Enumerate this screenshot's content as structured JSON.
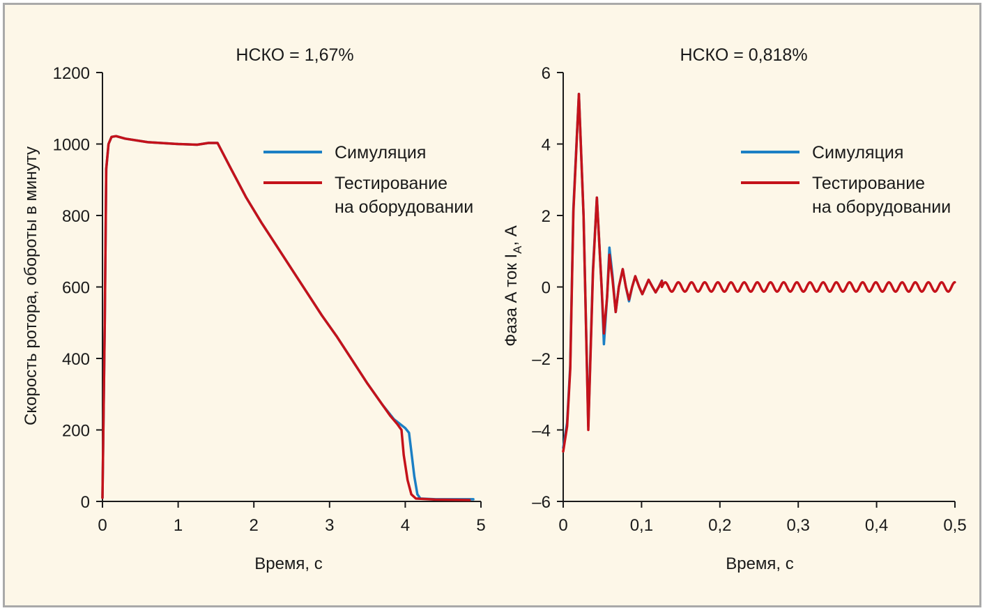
{
  "colors": {
    "background": "#fdf7e8",
    "frame": "#a9a9a9",
    "simulation": "#1b7fc4",
    "hardware": "#c4121a"
  },
  "chart_data": [
    {
      "type": "line",
      "title": "НСКО = 1,67%",
      "xlabel": "Время, с",
      "ylabel": "Скорость ротора, обороты в минуту",
      "xlim": [
        0,
        5
      ],
      "ylim": [
        0,
        1200
      ],
      "xticks": [
        {
          "v": 0,
          "label": "0"
        },
        {
          "v": 1,
          "label": "1"
        },
        {
          "v": 2,
          "label": "2"
        },
        {
          "v": 3,
          "label": "3"
        },
        {
          "v": 4,
          "label": "4"
        },
        {
          "v": 5,
          "label": "5"
        }
      ],
      "yticks": [
        {
          "v": 0,
          "label": "0"
        },
        {
          "v": 200,
          "label": "200"
        },
        {
          "v": 400,
          "label": "400"
        },
        {
          "v": 600,
          "label": "600"
        },
        {
          "v": 800,
          "label": "800"
        },
        {
          "v": 1000,
          "label": "1000"
        },
        {
          "v": 1200,
          "label": "1200"
        }
      ],
      "legend": [
        "Симуляция",
        "Тестирование",
        "на оборудовании"
      ],
      "series": [
        {
          "name": "Симуляция",
          "color": "#1b7fc4",
          "points": [
            [
              0,
              10
            ],
            [
              0.03,
              500
            ],
            [
              0.05,
              930
            ],
            [
              0.08,
              1000
            ],
            [
              0.12,
              1020
            ],
            [
              0.18,
              1022
            ],
            [
              0.3,
              1015
            ],
            [
              0.6,
              1005
            ],
            [
              1.0,
              1000
            ],
            [
              1.25,
              998
            ],
            [
              1.4,
              1003
            ],
            [
              1.52,
              1003
            ],
            [
              1.7,
              930
            ],
            [
              1.9,
              850
            ],
            [
              2.1,
              780
            ],
            [
              2.3,
              715
            ],
            [
              2.5,
              650
            ],
            [
              2.7,
              585
            ],
            [
              2.9,
              520
            ],
            [
              3.1,
              460
            ],
            [
              3.3,
              395
            ],
            [
              3.5,
              330
            ],
            [
              3.7,
              270
            ],
            [
              3.85,
              230
            ],
            [
              4.0,
              205
            ],
            [
              4.05,
              192
            ],
            [
              4.08,
              140
            ],
            [
              4.12,
              70
            ],
            [
              4.16,
              20
            ],
            [
              4.2,
              8
            ],
            [
              4.4,
              6
            ],
            [
              4.9,
              6
            ]
          ]
        },
        {
          "name": "Тестирование на оборудовании",
          "color": "#c4121a",
          "points": [
            [
              0,
              10
            ],
            [
              0.03,
              500
            ],
            [
              0.05,
              930
            ],
            [
              0.08,
              1000
            ],
            [
              0.12,
              1020
            ],
            [
              0.18,
              1022
            ],
            [
              0.3,
              1015
            ],
            [
              0.6,
              1005
            ],
            [
              1.0,
              1000
            ],
            [
              1.25,
              998
            ],
            [
              1.4,
              1003
            ],
            [
              1.52,
              1003
            ],
            [
              1.7,
              930
            ],
            [
              1.9,
              850
            ],
            [
              2.1,
              780
            ],
            [
              2.3,
              715
            ],
            [
              2.5,
              650
            ],
            [
              2.7,
              585
            ],
            [
              2.9,
              520
            ],
            [
              3.1,
              460
            ],
            [
              3.3,
              395
            ],
            [
              3.5,
              330
            ],
            [
              3.7,
              270
            ],
            [
              3.8,
              240
            ],
            [
              3.9,
              215
            ],
            [
              3.95,
              200
            ],
            [
              3.98,
              130
            ],
            [
              4.03,
              60
            ],
            [
              4.08,
              20
            ],
            [
              4.14,
              8
            ],
            [
              4.4,
              5
            ],
            [
              4.85,
              4
            ]
          ]
        }
      ]
    },
    {
      "type": "line",
      "title": "НСКО = 0,818%",
      "xlabel": "Время, с",
      "ylabel": "Фаза А ток I",
      "ylabel_sub": "A",
      "ylabel_suffix": ", А",
      "xlim": [
        0,
        0.5
      ],
      "ylim": [
        -6,
        6
      ],
      "xticks": [
        {
          "v": 0,
          "label": "0"
        },
        {
          "v": 0.1,
          "label": "0,1"
        },
        {
          "v": 0.2,
          "label": "0,2"
        },
        {
          "v": 0.3,
          "label": "0,3"
        },
        {
          "v": 0.4,
          "label": "0,4"
        },
        {
          "v": 0.5,
          "label": "0,5"
        }
      ],
      "yticks": [
        {
          "v": -6,
          "label": "–6"
        },
        {
          "v": -4,
          "label": "–4"
        },
        {
          "v": -2,
          "label": "–2"
        },
        {
          "v": 0,
          "label": "0"
        },
        {
          "v": 2,
          "label": "2"
        },
        {
          "v": 4,
          "label": "4"
        },
        {
          "v": 6,
          "label": "6"
        }
      ],
      "legend": [
        "Симуляция",
        "Тестирование",
        "на оборудовании"
      ],
      "series": [
        {
          "name": "Симуляция",
          "color": "#1b7fc4",
          "points": [
            [
              0,
              -4.5
            ],
            [
              0.005,
              -3.8
            ],
            [
              0.009,
              -2.2
            ],
            [
              0.013,
              2.2
            ],
            [
              0.02,
              5.4
            ],
            [
              0.026,
              2.0
            ],
            [
              0.032,
              -3.9
            ],
            [
              0.038,
              0.5
            ],
            [
              0.043,
              2.5
            ],
            [
              0.049,
              0.0
            ],
            [
              0.052,
              -1.6
            ],
            [
              0.056,
              -0.3
            ],
            [
              0.059,
              1.1
            ],
            [
              0.063,
              0.3
            ],
            [
              0.067,
              -0.7
            ],
            [
              0.071,
              0.0
            ],
            [
              0.076,
              0.5
            ],
            [
              0.08,
              0.0
            ],
            [
              0.084,
              -0.4
            ],
            [
              0.088,
              0.0
            ],
            [
              0.092,
              0.3
            ],
            [
              0.097,
              0.0
            ],
            [
              0.101,
              -0.2
            ],
            [
              0.105,
              0.0
            ],
            [
              0.109,
              0.2
            ],
            [
              0.114,
              0.0
            ],
            [
              0.118,
              -0.15
            ],
            [
              0.122,
              0.0
            ],
            [
              0.126,
              0.18
            ]
          ]
        },
        {
          "name": "Тестирование на оборудовании",
          "color": "#c4121a",
          "points": [
            [
              0,
              -4.6
            ],
            [
              0.005,
              -3.9
            ],
            [
              0.009,
              -2.3
            ],
            [
              0.013,
              2.1
            ],
            [
              0.02,
              5.4
            ],
            [
              0.026,
              2.0
            ],
            [
              0.032,
              -4.0
            ],
            [
              0.038,
              0.4
            ],
            [
              0.043,
              2.5
            ],
            [
              0.049,
              0.0
            ],
            [
              0.052,
              -1.3
            ],
            [
              0.056,
              -0.3
            ],
            [
              0.059,
              0.9
            ],
            [
              0.063,
              0.2
            ],
            [
              0.067,
              -0.7
            ],
            [
              0.071,
              0.0
            ],
            [
              0.076,
              0.5
            ],
            [
              0.08,
              0.0
            ],
            [
              0.084,
              -0.35
            ],
            [
              0.088,
              0.0
            ],
            [
              0.092,
              0.3
            ],
            [
              0.097,
              0.0
            ],
            [
              0.101,
              -0.2
            ],
            [
              0.105,
              0.0
            ],
            [
              0.109,
              0.2
            ],
            [
              0.114,
              0.0
            ],
            [
              0.118,
              -0.15
            ],
            [
              0.122,
              0.0
            ],
            [
              0.126,
              0.17
            ]
          ],
          "steady_oscillation": {
            "from": 0.126,
            "to": 0.5,
            "amplitude": 0.13,
            "period": 0.0168
          }
        }
      ]
    }
  ]
}
